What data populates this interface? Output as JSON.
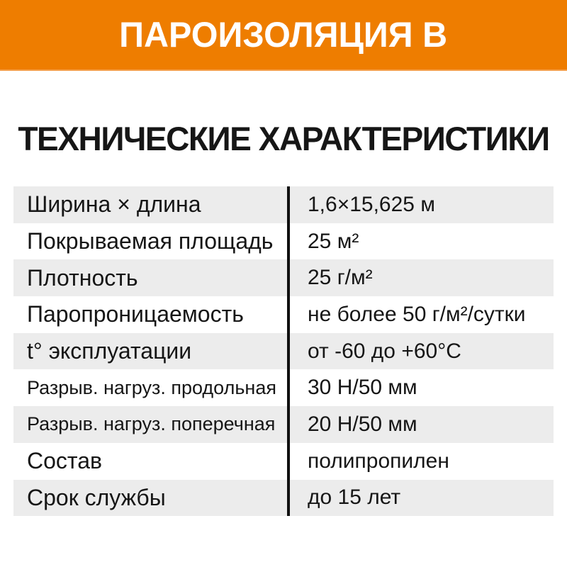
{
  "banner": {
    "title": "ПАРОИЗОЛЯЦИЯ В",
    "bg_color": "#EE7D00",
    "text_color": "#FFFFFF"
  },
  "section": {
    "title": "ТЕХНИЧЕСКИЕ ХАРАКТЕРИСТИКИ"
  },
  "table": {
    "alt_row_color": "#ECECEC",
    "divider_color": "#101010",
    "rows": [
      {
        "label": "Ширина × длина",
        "value": "1,6×15,625 м"
      },
      {
        "label": "Покрываемая площадь",
        "value": "25 м²"
      },
      {
        "label": "Плотность",
        "value": "25 г/м²"
      },
      {
        "label": "Паропроницаемость",
        "value": "не более 50 г/м²/сутки"
      },
      {
        "label": "t° эксплуатации",
        "value": "от -60 до +60°С"
      },
      {
        "label": "Разрыв. нагруз. продольная",
        "value": "30 Н/50 мм"
      },
      {
        "label": "Разрыв. нагруз. поперечная",
        "value": "20 Н/50 мм"
      },
      {
        "label": "Состав",
        "value": "полипропилен"
      },
      {
        "label": "Срок службы",
        "value": "до 15 лет"
      }
    ]
  }
}
